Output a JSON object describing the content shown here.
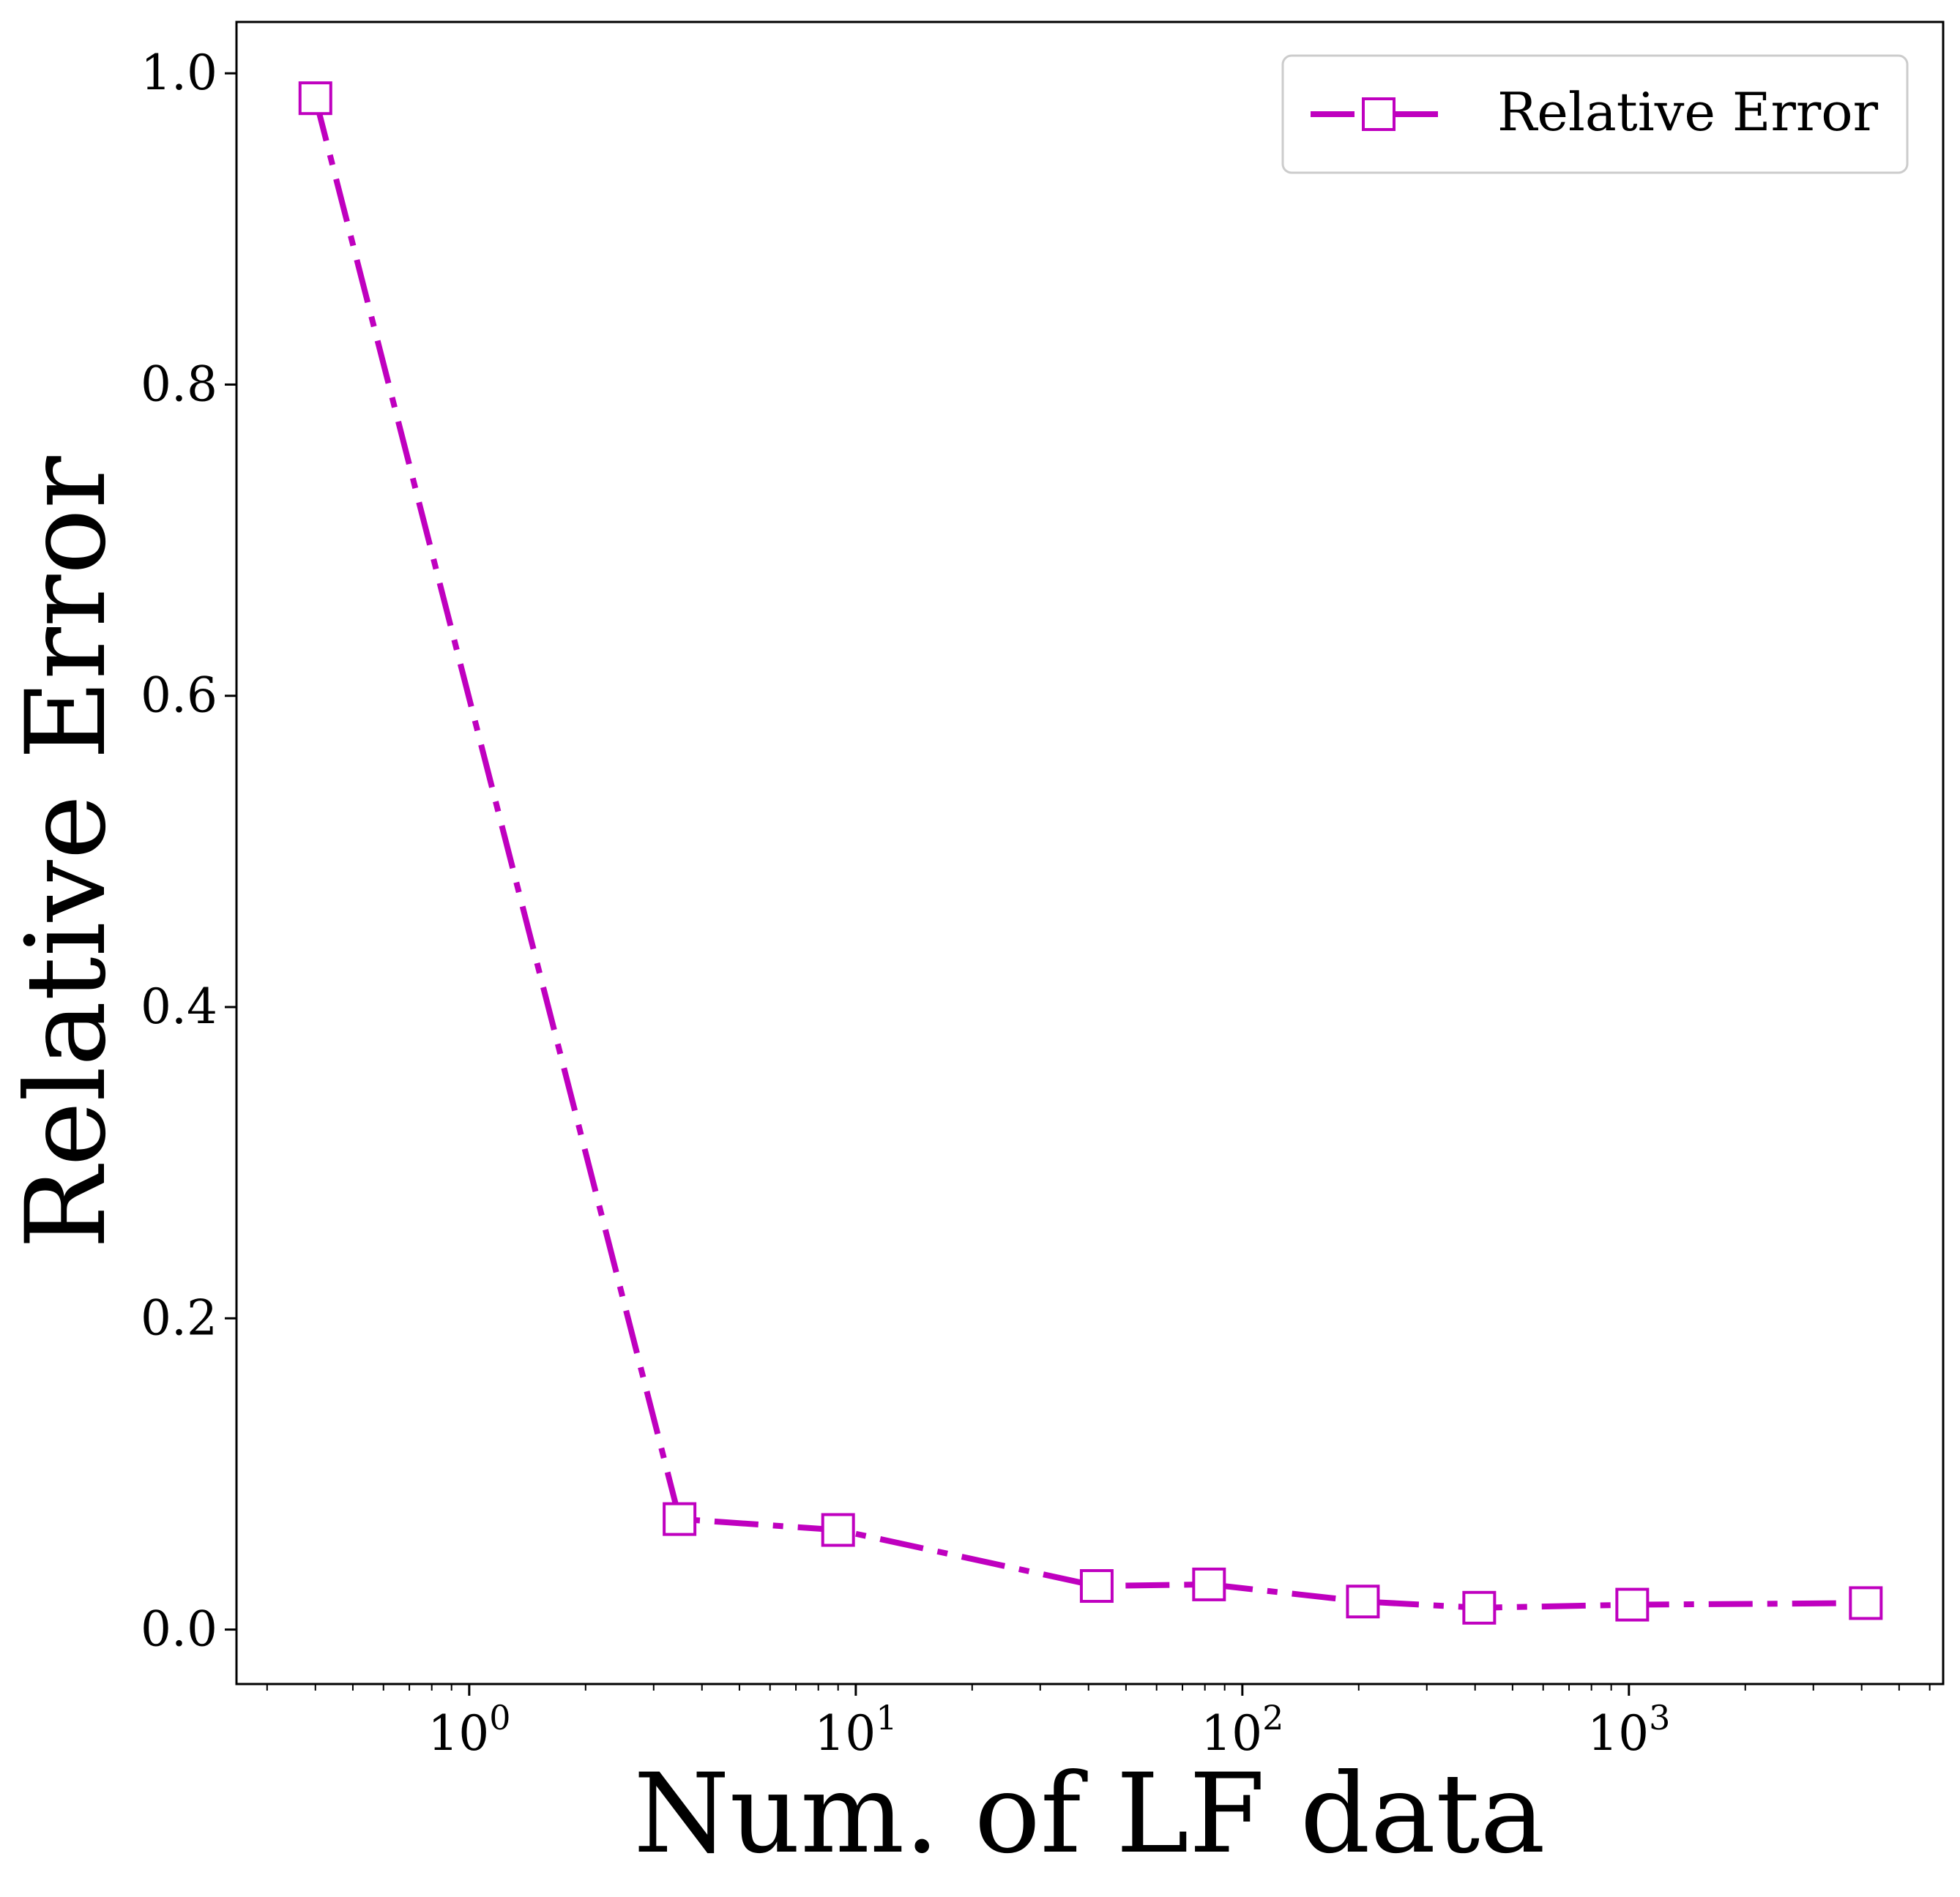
{
  "chart_data": {
    "type": "line",
    "title": "",
    "xlabel": "Num. of LF data",
    "ylabel": "Relative Error",
    "xscale": "log",
    "xlim": [
      0.25,
      6500
    ],
    "ylim": [
      -0.035,
      1.033
    ],
    "xticks": [
      {
        "value": 1,
        "base": "10",
        "exp": "0"
      },
      {
        "value": 10,
        "base": "10",
        "exp": "1"
      },
      {
        "value": 100,
        "base": "10",
        "exp": "2"
      },
      {
        "value": 1000,
        "base": "10",
        "exp": "3"
      }
    ],
    "yticks": [
      {
        "value": 0.0,
        "label": "0.0"
      },
      {
        "value": 0.2,
        "label": "0.2"
      },
      {
        "value": 0.4,
        "label": "0.4"
      },
      {
        "value": 0.6,
        "label": "0.6"
      },
      {
        "value": 0.8,
        "label": "0.8"
      },
      {
        "value": 1.0,
        "label": "1.0"
      }
    ],
    "grid": false,
    "legend_position": "top-right",
    "series": [
      {
        "name": "Relative Error",
        "color": "#bf00bf",
        "line_style": "dash-dot",
        "marker": "open-square",
        "x": [
          0.4,
          3.5,
          9,
          42,
          82,
          205,
          410,
          1020,
          4100
        ],
        "y": [
          0.984,
          0.071,
          0.064,
          0.028,
          0.029,
          0.018,
          0.014,
          0.016,
          0.017
        ]
      }
    ]
  }
}
